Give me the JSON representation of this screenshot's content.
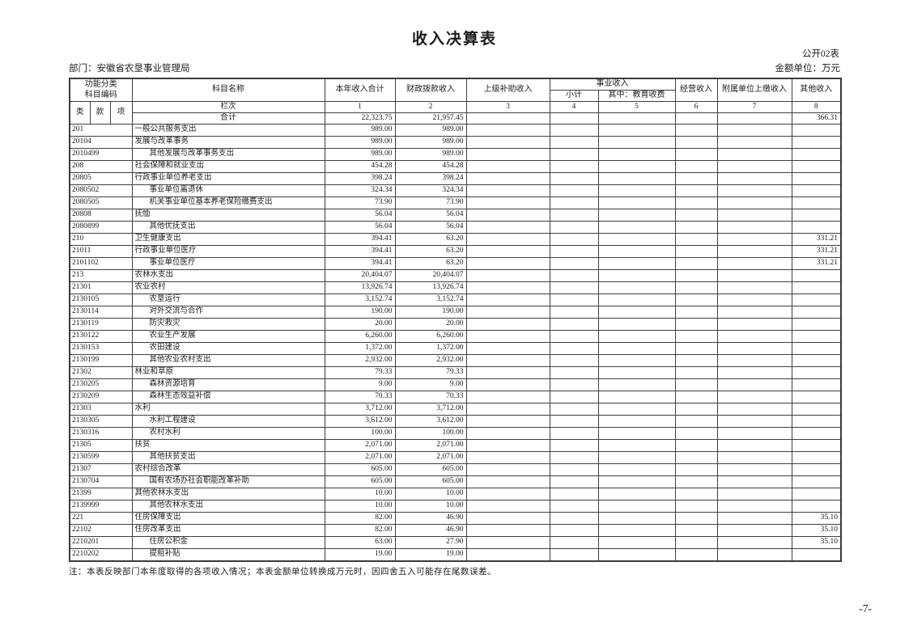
{
  "page": {
    "title": "收入决算表",
    "doc_label": "公开02表",
    "department": "部门：安徽省农垦事业管理局",
    "unit": "金额单位：万元",
    "note": "注：本表反映部门本年度取得的各项收入情况；本表金额单位转换成万元时，因四舍五入可能存在尾数误差。",
    "page_number": "-7-"
  },
  "table": {
    "headers": {
      "func_code_line1": "功能分类",
      "func_code_line2": "科目编码",
      "subject_name": "科目名称",
      "total_income": "本年收入合计",
      "fiscal_allocation": "财政拨款收入",
      "superior_subsidy": "上级补助收入",
      "business_income": "事业收入",
      "business_subtotal": "小计",
      "business_education": "其中：教育收费",
      "operating_income": "经营收入",
      "affiliated_income": "附属单位上缴收入",
      "other_income": "其他收入",
      "cat": "类",
      "sec": "款",
      "item": "项",
      "column_index_label": "栏次",
      "column_indices": [
        "1",
        "2",
        "3",
        "4",
        "5",
        "6",
        "7",
        "8"
      ]
    },
    "total_row": {
      "label": "合计",
      "values": [
        "22,323.75",
        "21,957.45",
        "",
        "",
        "",
        "",
        "",
        "366.31"
      ]
    },
    "rows": [
      {
        "code": "201",
        "name": "一般公共服务支出",
        "level": 1,
        "values": [
          "989.00",
          "989.00",
          "",
          "",
          "",
          "",
          "",
          ""
        ]
      },
      {
        "code": "20104",
        "name": "发展与改革事务",
        "level": 2,
        "values": [
          "989.00",
          "989.00",
          "",
          "",
          "",
          "",
          "",
          ""
        ]
      },
      {
        "code": "2010499",
        "name": "其他发展与改革事务支出",
        "level": 3,
        "values": [
          "989.00",
          "989.00",
          "",
          "",
          "",
          "",
          "",
          ""
        ]
      },
      {
        "code": "208",
        "name": "社会保障和就业支出",
        "level": 1,
        "values": [
          "454.28",
          "454.28",
          "",
          "",
          "",
          "",
          "",
          ""
        ]
      },
      {
        "code": "20805",
        "name": "行政事业单位养老支出",
        "level": 2,
        "values": [
          "398.24",
          "398.24",
          "",
          "",
          "",
          "",
          "",
          ""
        ]
      },
      {
        "code": "2080502",
        "name": "事业单位离退休",
        "level": 3,
        "values": [
          "324.34",
          "324.34",
          "",
          "",
          "",
          "",
          "",
          ""
        ]
      },
      {
        "code": "2080505",
        "name": "机关事业单位基本养老保险缴费支出",
        "level": 3,
        "values": [
          "73.90",
          "73.90",
          "",
          "",
          "",
          "",
          "",
          ""
        ]
      },
      {
        "code": "20808",
        "name": "抚恤",
        "level": 2,
        "values": [
          "56.04",
          "56.04",
          "",
          "",
          "",
          "",
          "",
          ""
        ]
      },
      {
        "code": "2080899",
        "name": "其他优抚支出",
        "level": 3,
        "values": [
          "56.04",
          "56.04",
          "",
          "",
          "",
          "",
          "",
          ""
        ]
      },
      {
        "code": "210",
        "name": "卫生健康支出",
        "level": 1,
        "values": [
          "394.41",
          "63.20",
          "",
          "",
          "",
          "",
          "",
          "331.21"
        ]
      },
      {
        "code": "21011",
        "name": "行政事业单位医疗",
        "level": 2,
        "values": [
          "394.41",
          "63.20",
          "",
          "",
          "",
          "",
          "",
          "331.21"
        ]
      },
      {
        "code": "2101102",
        "name": "事业单位医疗",
        "level": 3,
        "values": [
          "394.41",
          "63.20",
          "",
          "",
          "",
          "",
          "",
          "331.21"
        ]
      },
      {
        "code": "213",
        "name": "农林水支出",
        "level": 1,
        "values": [
          "20,404.07",
          "20,404.07",
          "",
          "",
          "",
          "",
          "",
          ""
        ]
      },
      {
        "code": "21301",
        "name": "农业农村",
        "level": 2,
        "values": [
          "13,926.74",
          "13,926.74",
          "",
          "",
          "",
          "",
          "",
          ""
        ]
      },
      {
        "code": "2130105",
        "name": "农垦运行",
        "level": 3,
        "values": [
          "3,152.74",
          "3,152.74",
          "",
          "",
          "",
          "",
          "",
          ""
        ]
      },
      {
        "code": "2130114",
        "name": "对外交流与合作",
        "level": 3,
        "values": [
          "190.00",
          "190.00",
          "",
          "",
          "",
          "",
          "",
          ""
        ]
      },
      {
        "code": "2130119",
        "name": "防灾救灾",
        "level": 3,
        "values": [
          "20.00",
          "20.00",
          "",
          "",
          "",
          "",
          "",
          ""
        ]
      },
      {
        "code": "2130122",
        "name": "农业生产发展",
        "level": 3,
        "values": [
          "6,260.00",
          "6,260.00",
          "",
          "",
          "",
          "",
          "",
          ""
        ]
      },
      {
        "code": "2130153",
        "name": "农田建设",
        "level": 3,
        "values": [
          "1,372.00",
          "1,372.00",
          "",
          "",
          "",
          "",
          "",
          ""
        ]
      },
      {
        "code": "2130199",
        "name": "其他农业农村支出",
        "level": 3,
        "values": [
          "2,932.00",
          "2,932.00",
          "",
          "",
          "",
          "",
          "",
          ""
        ]
      },
      {
        "code": "21302",
        "name": "林业和草原",
        "level": 2,
        "values": [
          "79.33",
          "79.33",
          "",
          "",
          "",
          "",
          "",
          ""
        ]
      },
      {
        "code": "2130205",
        "name": "森林资源培育",
        "level": 3,
        "values": [
          "9.00",
          "9.00",
          "",
          "",
          "",
          "",
          "",
          ""
        ]
      },
      {
        "code": "2130209",
        "name": "森林生态效益补偿",
        "level": 3,
        "values": [
          "70.33",
          "70.33",
          "",
          "",
          "",
          "",
          "",
          ""
        ]
      },
      {
        "code": "21303",
        "name": "水利",
        "level": 2,
        "values": [
          "3,712.00",
          "3,712.00",
          "",
          "",
          "",
          "",
          "",
          ""
        ]
      },
      {
        "code": "2130305",
        "name": "水利工程建设",
        "level": 3,
        "values": [
          "3,612.00",
          "3,612.00",
          "",
          "",
          "",
          "",
          "",
          ""
        ]
      },
      {
        "code": "2130316",
        "name": "农村水利",
        "level": 3,
        "values": [
          "100.00",
          "100.00",
          "",
          "",
          "",
          "",
          "",
          ""
        ]
      },
      {
        "code": "21305",
        "name": "扶贫",
        "level": 2,
        "values": [
          "2,071.00",
          "2,071.00",
          "",
          "",
          "",
          "",
          "",
          ""
        ]
      },
      {
        "code": "2130599",
        "name": "其他扶贫支出",
        "level": 3,
        "values": [
          "2,071.00",
          "2,071.00",
          "",
          "",
          "",
          "",
          "",
          ""
        ]
      },
      {
        "code": "21307",
        "name": "农村综合改革",
        "level": 2,
        "values": [
          "605.00",
          "605.00",
          "",
          "",
          "",
          "",
          "",
          ""
        ]
      },
      {
        "code": "2130704",
        "name": "国有农场办社会职能改革补助",
        "level": 3,
        "values": [
          "605.00",
          "605.00",
          "",
          "",
          "",
          "",
          "",
          ""
        ]
      },
      {
        "code": "21399",
        "name": "其他农林水支出",
        "level": 2,
        "values": [
          "10.00",
          "10.00",
          "",
          "",
          "",
          "",
          "",
          ""
        ]
      },
      {
        "code": "2139999",
        "name": "其他农林水支出",
        "level": 3,
        "values": [
          "10.00",
          "10.00",
          "",
          "",
          "",
          "",
          "",
          ""
        ]
      },
      {
        "code": "221",
        "name": "住房保障支出",
        "level": 1,
        "values": [
          "82.00",
          "46.90",
          "",
          "",
          "",
          "",
          "",
          "35.10"
        ]
      },
      {
        "code": "22102",
        "name": "住房改革支出",
        "level": 2,
        "values": [
          "82.00",
          "46.90",
          "",
          "",
          "",
          "",
          "",
          "35.10"
        ]
      },
      {
        "code": "2210201",
        "name": "住房公积金",
        "level": 3,
        "values": [
          "63.00",
          "27.90",
          "",
          "",
          "",
          "",
          "",
          "35.10"
        ]
      },
      {
        "code": "2210202",
        "name": "提租补贴",
        "level": 3,
        "values": [
          "19.00",
          "19.00",
          "",
          "",
          "",
          "",
          "",
          ""
        ]
      }
    ]
  }
}
